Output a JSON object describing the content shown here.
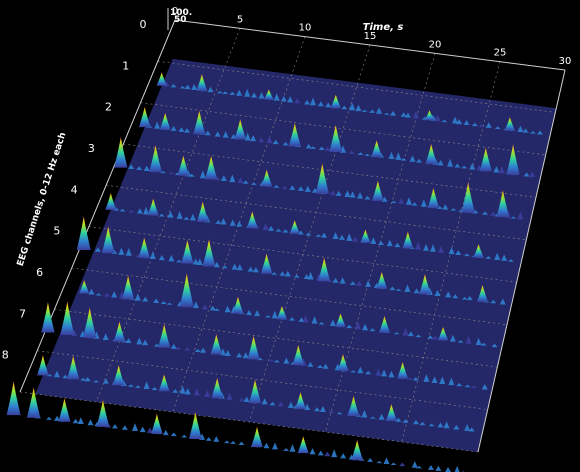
{
  "chart_data": {
    "type": "surface-3d",
    "x_axis": {
      "label": "Time, s",
      "ticks": [
        "0",
        "5",
        "10",
        "15",
        "20",
        "25",
        "30"
      ],
      "range": [
        0,
        30
      ]
    },
    "y_axis": {
      "label": "EEG channels, 0-12 Hz each",
      "ticks": [
        "0",
        "1",
        "2",
        "3",
        "4",
        "5",
        "6",
        "7",
        "8"
      ],
      "range": [
        0,
        8
      ]
    },
    "z_axis": {
      "ticks": [
        "100",
        "50"
      ]
    },
    "grid": true,
    "colormap": [
      "#3a3f9e",
      "#2f7fd0",
      "#2fd0a0",
      "#9be030",
      "#f0c020",
      "#e05020"
    ],
    "series": [
      {
        "channel": 1,
        "peaks": [
          [
            1,
            0.4
          ],
          [
            4,
            0.5
          ],
          [
            9,
            0.3
          ],
          [
            14,
            0.4
          ],
          [
            21,
            0.3
          ],
          [
            27,
            0.4
          ]
        ]
      },
      {
        "channel": 2,
        "peaks": [
          [
            1,
            0.6
          ],
          [
            2.5,
            0.5
          ],
          [
            5,
            0.7
          ],
          [
            8,
            0.6
          ],
          [
            12,
            0.7
          ],
          [
            15,
            0.8
          ],
          [
            18,
            0.5
          ],
          [
            22,
            0.6
          ],
          [
            26,
            0.7
          ],
          [
            28,
            0.9
          ]
        ]
      },
      {
        "channel": 3,
        "peaks": [
          [
            0.5,
            0.9
          ],
          [
            3,
            0.8
          ],
          [
            5,
            0.6
          ],
          [
            7,
            0.7
          ],
          [
            11,
            0.5
          ],
          [
            15,
            0.9
          ],
          [
            19,
            0.6
          ],
          [
            23,
            0.6
          ],
          [
            25.5,
            0.9
          ],
          [
            28,
            0.8
          ]
        ]
      },
      {
        "channel": 4,
        "peaks": [
          [
            1,
            0.5
          ],
          [
            4,
            0.5
          ],
          [
            7.5,
            0.6
          ],
          [
            11,
            0.5
          ],
          [
            14,
            0.4
          ],
          [
            19,
            0.4
          ],
          [
            22,
            0.5
          ],
          [
            27,
            0.4
          ]
        ]
      },
      {
        "channel": 5,
        "peaks": [
          [
            0.3,
            1.0
          ],
          [
            2,
            0.8
          ],
          [
            4.5,
            0.6
          ],
          [
            7.5,
            0.7
          ],
          [
            9,
            0.8
          ],
          [
            13,
            0.6
          ],
          [
            17,
            0.7
          ],
          [
            21,
            0.5
          ],
          [
            24,
            0.6
          ],
          [
            28,
            0.5
          ]
        ]
      },
      {
        "channel": 6,
        "peaks": [
          [
            1.5,
            0.4
          ],
          [
            4.5,
            0.7
          ],
          [
            8.5,
            1.0
          ],
          [
            12,
            0.5
          ],
          [
            15,
            0.4
          ],
          [
            19,
            0.4
          ],
          [
            22,
            0.5
          ],
          [
            26,
            0.4
          ]
        ]
      },
      {
        "channel": 7,
        "peaks": [
          [
            0.2,
            0.9
          ],
          [
            1.5,
            1.0
          ],
          [
            3,
            0.9
          ],
          [
            5,
            0.6
          ],
          [
            8,
            0.7
          ],
          [
            11.5,
            0.6
          ],
          [
            14,
            0.7
          ],
          [
            17,
            0.6
          ],
          [
            20,
            0.5
          ],
          [
            24,
            0.5
          ]
        ]
      },
      {
        "channel": 8,
        "peaks": [
          [
            1,
            0.6
          ],
          [
            3,
            0.7
          ],
          [
            6,
            0.6
          ],
          [
            9,
            0.5
          ],
          [
            12.5,
            0.6
          ],
          [
            15,
            0.7
          ],
          [
            18,
            0.5
          ],
          [
            21.5,
            0.6
          ],
          [
            24,
            0.5
          ]
        ]
      },
      {
        "channel": 9,
        "peaks": [
          [
            0.1,
            1.0
          ],
          [
            1.5,
            0.9
          ],
          [
            3.5,
            0.7
          ],
          [
            6,
            0.8
          ],
          [
            9.5,
            0.6
          ],
          [
            12,
            0.8
          ],
          [
            16,
            0.6
          ],
          [
            19,
            0.5
          ],
          [
            22.5,
            0.6
          ]
        ]
      }
    ]
  }
}
